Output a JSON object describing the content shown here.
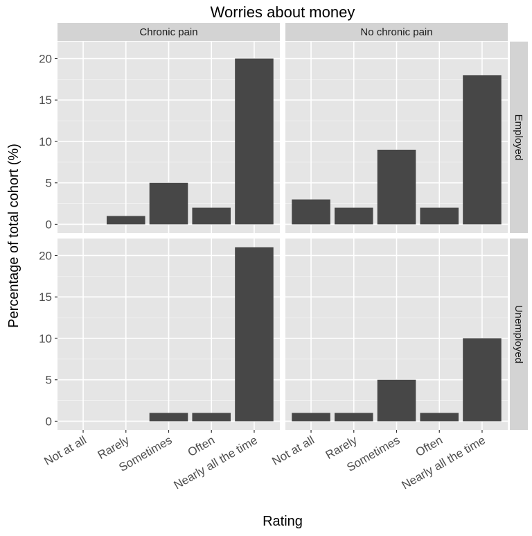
{
  "chart_data": {
    "type": "bar",
    "title": "Worries about money",
    "xlabel": "Rating",
    "ylabel": "Percentage of total cohort (%)",
    "categories": [
      "Not at all",
      "Rarely",
      "Sometimes",
      "Often",
      "Nearly all the time"
    ],
    "column_facets": [
      "Chronic pain",
      "No chronic pain"
    ],
    "row_facets": [
      "Employed",
      "Unemployed"
    ],
    "yticks": [
      0,
      5,
      10,
      15,
      20
    ],
    "ylim": [
      -1.05,
      22.05
    ],
    "grid": true,
    "bar_color": "#474747",
    "panel_background": "#e5e5e5",
    "strip_background": "#d3d3d3",
    "panels": [
      {
        "row": "Employed",
        "column": "Chronic pain",
        "values": [
          0,
          1,
          5,
          2,
          20
        ]
      },
      {
        "row": "Employed",
        "column": "No chronic pain",
        "values": [
          3,
          2,
          9,
          2,
          18
        ]
      },
      {
        "row": "Unemployed",
        "column": "Chronic pain",
        "values": [
          0,
          0,
          1,
          1,
          21
        ]
      },
      {
        "row": "Unemployed",
        "column": "No chronic pain",
        "values": [
          1,
          1,
          5,
          1,
          10
        ]
      }
    ]
  }
}
